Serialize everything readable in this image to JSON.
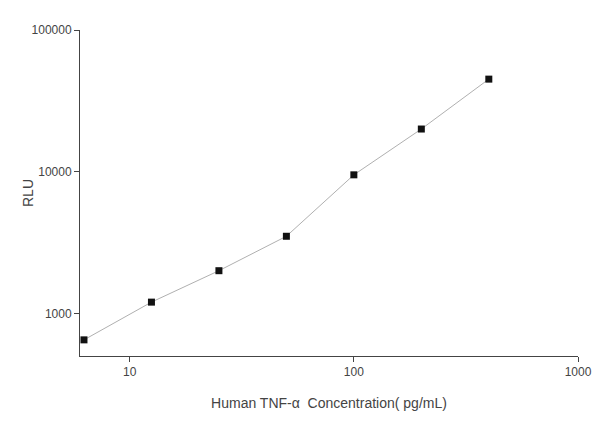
{
  "chart_data": {
    "type": "line",
    "x": [
      6.25,
      12.5,
      25,
      50,
      100,
      200,
      400
    ],
    "values": [
      650,
      1200,
      2000,
      3500,
      9500,
      20000,
      45000
    ],
    "xlabel": "Human TNF-α  Concentration( pg/mL)",
    "ylabel": "RLU",
    "xlim": [
      6,
      1000
    ],
    "ylim": [
      500,
      100000
    ],
    "xticks": [
      10,
      100,
      1000
    ],
    "yticks": [
      1000,
      10000,
      100000
    ],
    "log": true,
    "grid": false,
    "marker": "square",
    "color": "#b0b0b0",
    "colors": [
      "#111111",
      "#111111",
      "#111111",
      "#111111",
      "#111111",
      "#111111",
      "#111111"
    ]
  }
}
